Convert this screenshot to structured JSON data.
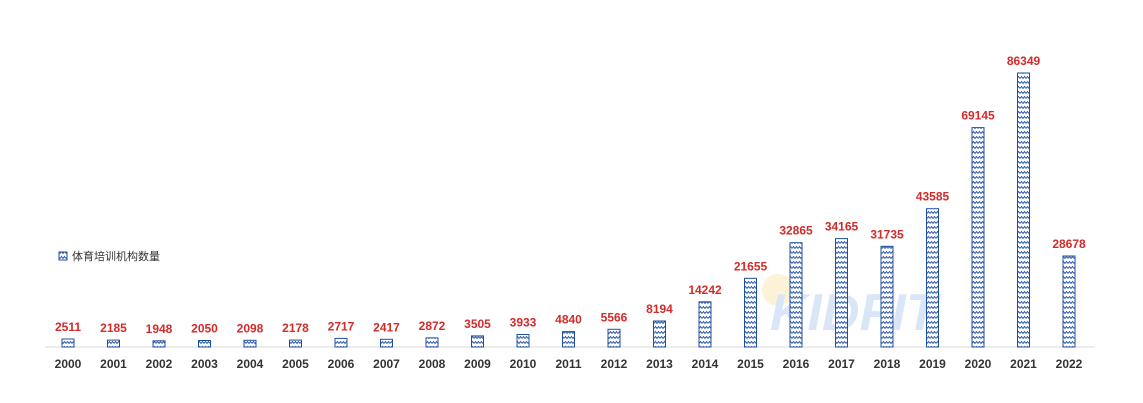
{
  "chart_data": {
    "type": "bar",
    "categories": [
      "2000",
      "2001",
      "2002",
      "2003",
      "2004",
      "2005",
      "2006",
      "2007",
      "2008",
      "2009",
      "2010",
      "2011",
      "2012",
      "2013",
      "2014",
      "2015",
      "2016",
      "2017",
      "2018",
      "2019",
      "2020",
      "2021",
      "2022"
    ],
    "series": [
      {
        "name": "体育培训机构数量",
        "values": [
          2511,
          2185,
          1948,
          2050,
          2098,
          2178,
          2717,
          2417,
          2872,
          3505,
          3933,
          4840,
          5566,
          8194,
          14242,
          21655,
          32865,
          34165,
          31735,
          43585,
          69145,
          86349,
          28678
        ]
      }
    ],
    "ylim": [
      0,
      86349
    ],
    "grid": false,
    "legend_position": "left",
    "colors": {
      "bar_stroke": "#1f4fa3",
      "value_label": "#d42a2a",
      "axis_label": "#333333"
    }
  }
}
